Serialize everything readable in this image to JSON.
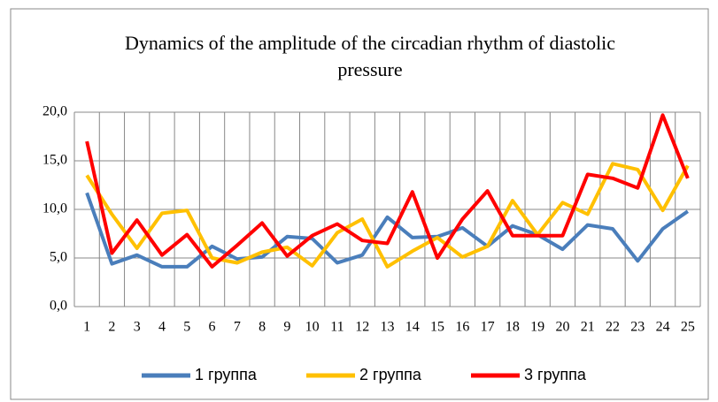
{
  "chart_data": {
    "type": "line",
    "title": "Dynamics of the amplitude of the circadian rhythm of diastolic pressure",
    "categories": [
      "1",
      "2",
      "3",
      "4",
      "5",
      "6",
      "7",
      "8",
      "9",
      "10",
      "11",
      "12",
      "13",
      "14",
      "15",
      "16",
      "17",
      "18",
      "19",
      "20",
      "21",
      "22",
      "23",
      "24",
      "25"
    ],
    "series": [
      {
        "name": "1 группа",
        "color": "#4a7ebb",
        "values": [
          11.7,
          4.4,
          5.3,
          4.1,
          4.1,
          6.2,
          4.9,
          5.1,
          7.2,
          7.0,
          4.5,
          5.3,
          9.2,
          7.1,
          7.2,
          8.1,
          6.2,
          8.3,
          7.4,
          5.9,
          8.4,
          8.0,
          4.7,
          8.0,
          9.8
        ]
      },
      {
        "name": "2 группа",
        "color": "#ffc000",
        "values": [
          13.5,
          9.5,
          6.0,
          9.6,
          9.9,
          5.0,
          4.5,
          5.6,
          6.1,
          4.2,
          7.6,
          9.0,
          4.1,
          5.7,
          7.1,
          5.1,
          6.2,
          10.9,
          7.4,
          10.7,
          9.5,
          14.7,
          14.1,
          9.9,
          14.5
        ]
      },
      {
        "name": "3 группа",
        "color": "#ff0000",
        "values": [
          17.0,
          5.5,
          8.9,
          5.3,
          7.4,
          4.1,
          6.3,
          8.6,
          5.2,
          7.3,
          8.5,
          6.8,
          6.5,
          11.8,
          5.0,
          9.0,
          11.9,
          7.3,
          7.3,
          7.3,
          13.6,
          13.2,
          12.2,
          19.7,
          13.2
        ]
      }
    ],
    "ylim": [
      0,
      20
    ],
    "yticks": [
      {
        "value": 0,
        "label": "0,0"
      },
      {
        "value": 5,
        "label": "5,0"
      },
      {
        "value": 10,
        "label": "10,0"
      },
      {
        "value": 15,
        "label": "15,0"
      },
      {
        "value": 20,
        "label": "20,0"
      }
    ],
    "grid": true,
    "legend": "bottom"
  }
}
